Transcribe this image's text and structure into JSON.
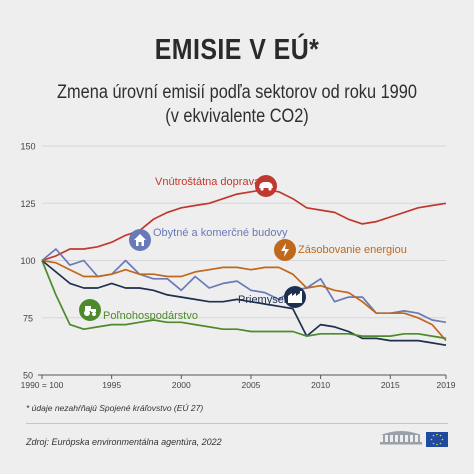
{
  "header": {
    "title": "EMISIE V EÚ*",
    "subtitle_line1": "Zmena úrovní emisií podľa sektorov od roku 1990",
    "subtitle_line2": "(v ekvivalente CO2)"
  },
  "footer": {
    "footnote": "* údaje nezahŕňajú Spojené kráľovstvo (EÚ 27)",
    "source": "Zdroj: Európska environmentálna agentúra, 2022"
  },
  "icons": [
    "car-icon",
    "house-icon",
    "lightning-icon",
    "tractor-icon",
    "factory-icon",
    "eu-parliament-logo",
    "eu-flag-icon"
  ],
  "chart_data": {
    "type": "line",
    "x": [
      1990,
      1991,
      1992,
      1993,
      1994,
      1995,
      1996,
      1997,
      1998,
      1999,
      2000,
      2001,
      2002,
      2003,
      2004,
      2005,
      2006,
      2007,
      2008,
      2009,
      2010,
      2011,
      2012,
      2013,
      2014,
      2015,
      2016,
      2017,
      2018,
      2019
    ],
    "x_tick_labels": [
      "1990 = 100",
      "1995",
      "2000",
      "2005",
      "2010",
      "2015",
      "2019"
    ],
    "x_tick_values": [
      1990,
      1995,
      2000,
      2005,
      2010,
      2015,
      2019
    ],
    "y_ticks": [
      50,
      75,
      100,
      125,
      150
    ],
    "ylim": [
      50,
      150
    ],
    "series": [
      {
        "name": "Vnútroštátna doprava",
        "color": "#c0392f",
        "values": [
          100,
          102,
          105,
          105,
          106,
          108,
          111,
          113,
          118,
          121,
          123,
          124,
          125,
          127,
          129,
          130,
          131,
          130,
          127,
          123,
          122,
          121,
          118,
          116,
          117,
          119,
          121,
          123,
          124,
          125
        ]
      },
      {
        "name": "Obytné a komerčné budovy",
        "color": "#6a79b7",
        "values": [
          100,
          105,
          98,
          100,
          93,
          94,
          100,
          94,
          92,
          92,
          87,
          93,
          88,
          90,
          91,
          87,
          86,
          83,
          87,
          88,
          92,
          82,
          84,
          84,
          77,
          77,
          78,
          77,
          74,
          73
        ]
      },
      {
        "name": "Zásobovanie energiou",
        "color": "#c0681c",
        "values": [
          100,
          99,
          96,
          93,
          93,
          94,
          96,
          94,
          94,
          93,
          93,
          95,
          96,
          97,
          97,
          96,
          97,
          97,
          94,
          88,
          89,
          87,
          86,
          82,
          77,
          77,
          77,
          75,
          72,
          65
        ]
      },
      {
        "name": "Priemysel",
        "color": "#1e2f4f",
        "values": [
          100,
          95,
          90,
          88,
          88,
          90,
          88,
          88,
          87,
          85,
          84,
          83,
          82,
          82,
          83,
          82,
          81,
          80,
          79,
          67,
          72,
          71,
          69,
          66,
          66,
          65,
          65,
          65,
          64,
          63
        ]
      },
      {
        "name": "Poľnohospodárstvo",
        "color": "#4c8a2c",
        "values": [
          100,
          85,
          72,
          70,
          71,
          72,
          72,
          73,
          74,
          73,
          73,
          72,
          71,
          70,
          70,
          69,
          69,
          69,
          69,
          67,
          68,
          68,
          68,
          67,
          67,
          67,
          68,
          68,
          67,
          66
        ]
      }
    ]
  }
}
